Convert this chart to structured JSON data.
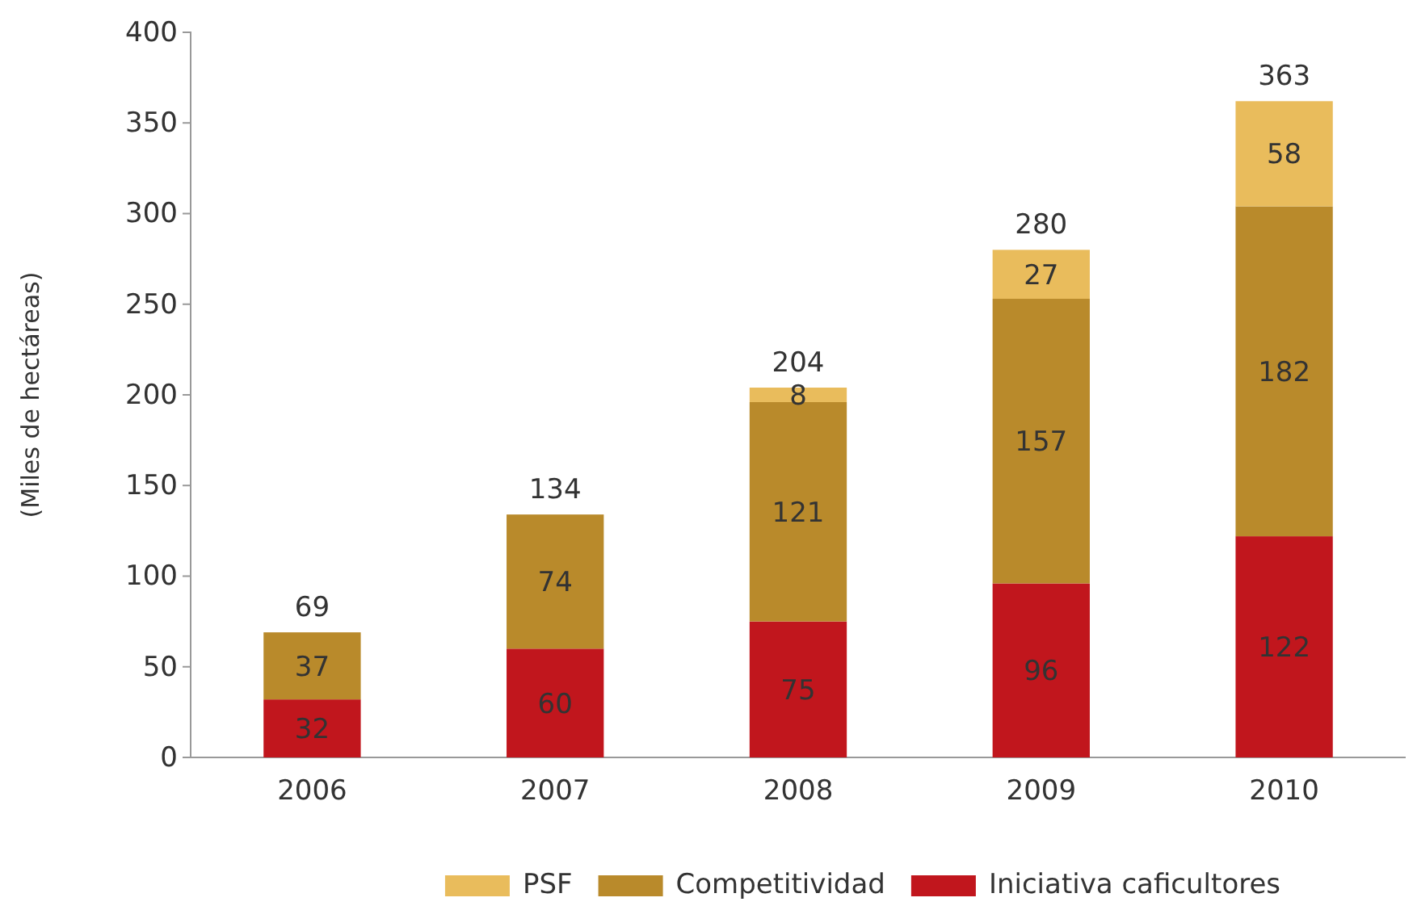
{
  "chart_data": {
    "type": "bar",
    "stacked": true,
    "ylabel": "(Miles de hectáreas)",
    "categories": [
      "2006",
      "2007",
      "2008",
      "2009",
      "2010"
    ],
    "series": [
      {
        "name": "Iniciativa caficultores",
        "color": "#c1161d",
        "values": [
          32,
          60,
          75,
          96,
          122
        ]
      },
      {
        "name": "Competitividad",
        "color": "#b98a2b",
        "values": [
          37,
          74,
          121,
          157,
          182
        ]
      },
      {
        "name": "PSF",
        "color": "#e9bc5c",
        "values": [
          null,
          null,
          8,
          27,
          58
        ]
      }
    ],
    "ylim": [
      0,
      400
    ],
    "yticks": [
      0,
      50,
      100,
      150,
      200,
      250,
      300,
      350,
      400
    ],
    "data_labels": true,
    "totals": [
      "69",
      "134",
      "204",
      "280",
      "363"
    ],
    "legend": "bottom"
  }
}
